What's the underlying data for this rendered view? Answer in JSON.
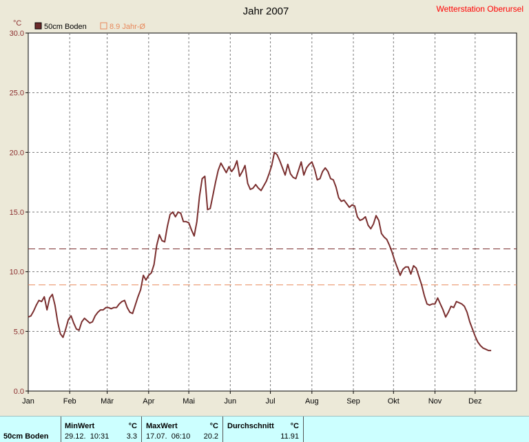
{
  "header": {
    "title": "Jahr 2007",
    "station": "Wetterstation Oberursel",
    "unit_label": "°C"
  },
  "legend": {
    "series_label": "50cm Boden",
    "avg_label": "8.9 Jahr-Ø"
  },
  "colors": {
    "series": "#7a2e2e",
    "avg_long": "#e8885a",
    "avg_year": "#7a2e2e",
    "station": "#ff0000",
    "axis_text": "#8b2d2d"
  },
  "chart_data": {
    "type": "line",
    "title": "Jahr 2007",
    "ylabel": "°C",
    "xlim": [
      0,
      365
    ],
    "ylim": [
      0,
      30
    ],
    "y_ticks": [
      "0.0",
      "5.0",
      "10.0",
      "15.0",
      "20.0",
      "25.0",
      "30.0"
    ],
    "month_labels": [
      "Jan",
      "Feb",
      "Mär",
      "Apr",
      "Mai",
      "Jun",
      "Jul",
      "Aug",
      "Sep",
      "Okt",
      "Nov",
      "Dez"
    ],
    "month_starts": [
      0,
      31,
      59,
      90,
      120,
      151,
      181,
      212,
      243,
      273,
      304,
      334
    ],
    "grid": true,
    "reference_lines": [
      {
        "label": "8.9 Jahr-Ø",
        "value": 8.9,
        "style": "dashed"
      },
      {
        "value": 11.91,
        "style": "dashed"
      }
    ],
    "series": [
      {
        "name": "50cm Boden",
        "points": [
          [
            0,
            6.2
          ],
          [
            2,
            6.3
          ],
          [
            4,
            6.7
          ],
          [
            6,
            7.2
          ],
          [
            8,
            7.6
          ],
          [
            10,
            7.5
          ],
          [
            12,
            7.9
          ],
          [
            14,
            6.8
          ],
          [
            16,
            7.8
          ],
          [
            18,
            8.1
          ],
          [
            20,
            7.2
          ],
          [
            22,
            5.8
          ],
          [
            24,
            4.8
          ],
          [
            26,
            4.5
          ],
          [
            28,
            5.2
          ],
          [
            30,
            6.0
          ],
          [
            32,
            6.3
          ],
          [
            34,
            5.7
          ],
          [
            36,
            5.2
          ],
          [
            38,
            5.1
          ],
          [
            40,
            5.8
          ],
          [
            42,
            6.1
          ],
          [
            44,
            5.9
          ],
          [
            46,
            5.7
          ],
          [
            48,
            5.8
          ],
          [
            50,
            6.3
          ],
          [
            52,
            6.6
          ],
          [
            54,
            6.8
          ],
          [
            56,
            6.8
          ],
          [
            58,
            7.0
          ],
          [
            60,
            7.0
          ],
          [
            62,
            6.9
          ],
          [
            64,
            7.0
          ],
          [
            66,
            7.0
          ],
          [
            68,
            7.3
          ],
          [
            70,
            7.5
          ],
          [
            72,
            7.6
          ],
          [
            74,
            7.0
          ],
          [
            76,
            6.6
          ],
          [
            78,
            6.5
          ],
          [
            80,
            7.2
          ],
          [
            82,
            7.9
          ],
          [
            84,
            8.5
          ],
          [
            86,
            9.7
          ],
          [
            88,
            9.3
          ],
          [
            90,
            9.7
          ],
          [
            92,
            9.9
          ],
          [
            94,
            10.6
          ],
          [
            96,
            12.2
          ],
          [
            98,
            13.1
          ],
          [
            100,
            12.6
          ],
          [
            102,
            12.5
          ],
          [
            104,
            13.8
          ],
          [
            106,
            14.8
          ],
          [
            108,
            15.0
          ],
          [
            110,
            14.6
          ],
          [
            112,
            15.0
          ],
          [
            114,
            14.9
          ],
          [
            116,
            14.2
          ],
          [
            118,
            14.2
          ],
          [
            120,
            14.1
          ],
          [
            122,
            13.5
          ],
          [
            124,
            13.0
          ],
          [
            126,
            14.2
          ],
          [
            128,
            16.3
          ],
          [
            130,
            17.8
          ],
          [
            132,
            18.0
          ],
          [
            134,
            15.2
          ],
          [
            136,
            15.3
          ],
          [
            138,
            16.4
          ],
          [
            140,
            17.5
          ],
          [
            142,
            18.5
          ],
          [
            144,
            19.1
          ],
          [
            146,
            18.7
          ],
          [
            148,
            18.3
          ],
          [
            150,
            18.8
          ],
          [
            152,
            18.4
          ],
          [
            154,
            18.7
          ],
          [
            156,
            19.3
          ],
          [
            158,
            18.0
          ],
          [
            160,
            18.4
          ],
          [
            162,
            18.9
          ],
          [
            164,
            17.4
          ],
          [
            166,
            16.9
          ],
          [
            168,
            17.0
          ],
          [
            170,
            17.3
          ],
          [
            172,
            17.0
          ],
          [
            174,
            16.8
          ],
          [
            176,
            17.2
          ],
          [
            178,
            17.6
          ],
          [
            180,
            18.2
          ],
          [
            182,
            18.9
          ],
          [
            184,
            20.0
          ],
          [
            186,
            19.8
          ],
          [
            188,
            19.3
          ],
          [
            190,
            18.7
          ],
          [
            192,
            18.1
          ],
          [
            194,
            19.0
          ],
          [
            196,
            18.2
          ],
          [
            198,
            17.9
          ],
          [
            200,
            17.8
          ],
          [
            202,
            18.5
          ],
          [
            204,
            19.2
          ],
          [
            206,
            18.1
          ],
          [
            208,
            18.7
          ],
          [
            210,
            19.0
          ],
          [
            212,
            19.2
          ],
          [
            214,
            18.6
          ],
          [
            216,
            17.7
          ],
          [
            218,
            17.8
          ],
          [
            220,
            18.4
          ],
          [
            222,
            18.7
          ],
          [
            224,
            18.4
          ],
          [
            226,
            17.8
          ],
          [
            228,
            17.7
          ],
          [
            230,
            17.1
          ],
          [
            232,
            16.2
          ],
          [
            234,
            15.9
          ],
          [
            236,
            16.0
          ],
          [
            238,
            15.7
          ],
          [
            240,
            15.4
          ],
          [
            242,
            15.6
          ],
          [
            244,
            15.5
          ],
          [
            246,
            14.6
          ],
          [
            248,
            14.3
          ],
          [
            250,
            14.4
          ],
          [
            252,
            14.6
          ],
          [
            254,
            13.9
          ],
          [
            256,
            13.6
          ],
          [
            258,
            14.0
          ],
          [
            260,
            14.7
          ],
          [
            262,
            14.3
          ],
          [
            264,
            13.2
          ],
          [
            266,
            12.9
          ],
          [
            268,
            12.7
          ],
          [
            270,
            12.2
          ],
          [
            272,
            11.6
          ],
          [
            274,
            10.9
          ],
          [
            276,
            10.3
          ],
          [
            278,
            9.7
          ],
          [
            280,
            10.2
          ],
          [
            282,
            10.4
          ],
          [
            284,
            10.4
          ],
          [
            286,
            9.8
          ],
          [
            288,
            10.5
          ],
          [
            290,
            10.3
          ],
          [
            292,
            9.6
          ],
          [
            294,
            8.9
          ],
          [
            296,
            8.0
          ],
          [
            298,
            7.3
          ],
          [
            300,
            7.2
          ],
          [
            302,
            7.3
          ],
          [
            304,
            7.3
          ],
          [
            306,
            7.8
          ],
          [
            308,
            7.3
          ],
          [
            310,
            6.8
          ],
          [
            312,
            6.2
          ],
          [
            314,
            6.6
          ],
          [
            316,
            7.1
          ],
          [
            318,
            7.0
          ],
          [
            320,
            7.5
          ],
          [
            322,
            7.4
          ],
          [
            324,
            7.3
          ],
          [
            326,
            7.1
          ],
          [
            328,
            6.6
          ],
          [
            330,
            5.8
          ],
          [
            332,
            5.2
          ],
          [
            334,
            4.6
          ],
          [
            336,
            4.1
          ],
          [
            338,
            3.8
          ],
          [
            340,
            3.6
          ],
          [
            342,
            3.5
          ],
          [
            344,
            3.4
          ],
          [
            346,
            3.4
          ]
        ]
      }
    ]
  },
  "stats": {
    "row_label": "50cm Boden",
    "min": {
      "header": "MinWert",
      "unit": "°C",
      "datetime": "29.12.  10:31",
      "value": "3.3"
    },
    "max": {
      "header": "MaxWert",
      "unit": "°C",
      "datetime": "17.07.  06:10",
      "value": "20.2"
    },
    "avg": {
      "header": "Durchschnitt",
      "unit": "°C",
      "value": "11.91"
    }
  }
}
